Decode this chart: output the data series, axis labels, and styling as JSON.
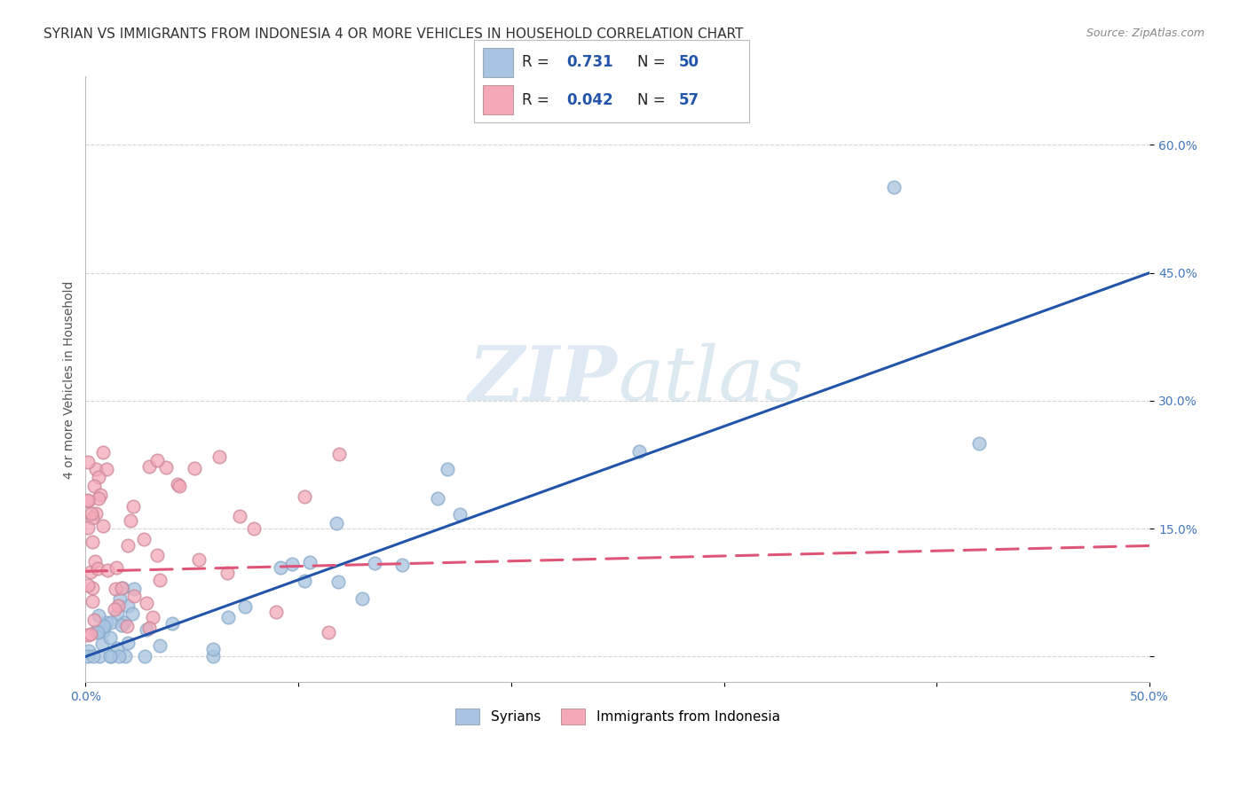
{
  "title": "SYRIAN VS IMMIGRANTS FROM INDONESIA 4 OR MORE VEHICLES IN HOUSEHOLD CORRELATION CHART",
  "source": "Source: ZipAtlas.com",
  "ylabel": "4 or more Vehicles in Household",
  "xmin": 0.0,
  "xmax": 0.5,
  "ymin": -0.03,
  "ymax": 0.68,
  "xtick_vals": [
    0.0,
    0.1,
    0.2,
    0.3,
    0.4,
    0.5
  ],
  "xtick_labels": [
    "0.0%",
    "",
    "",
    "",
    "",
    "50.0%"
  ],
  "ytick_positions": [
    0.0,
    0.15,
    0.3,
    0.45,
    0.6
  ],
  "ytick_labels": [
    "",
    "15.0%",
    "30.0%",
    "45.0%",
    "60.0%"
  ],
  "blue_R": "0.731",
  "blue_N": "50",
  "pink_R": "0.042",
  "pink_N": "57",
  "blue_color": "#a8c4e0",
  "pink_color": "#f4a8b8",
  "blue_line_color": "#2255aa",
  "pink_line_color": "#dd5577",
  "watermark_zip": "ZIP",
  "watermark_atlas": "atlas",
  "grid_color": "#cccccc",
  "background_color": "#ffffff",
  "title_fontsize": 11,
  "axis_label_fontsize": 10,
  "tick_fontsize": 10,
  "blue_line_start_y": 0.0,
  "blue_line_end_y": 0.45,
  "pink_line_start_y": 0.1,
  "pink_line_end_y": 0.13
}
